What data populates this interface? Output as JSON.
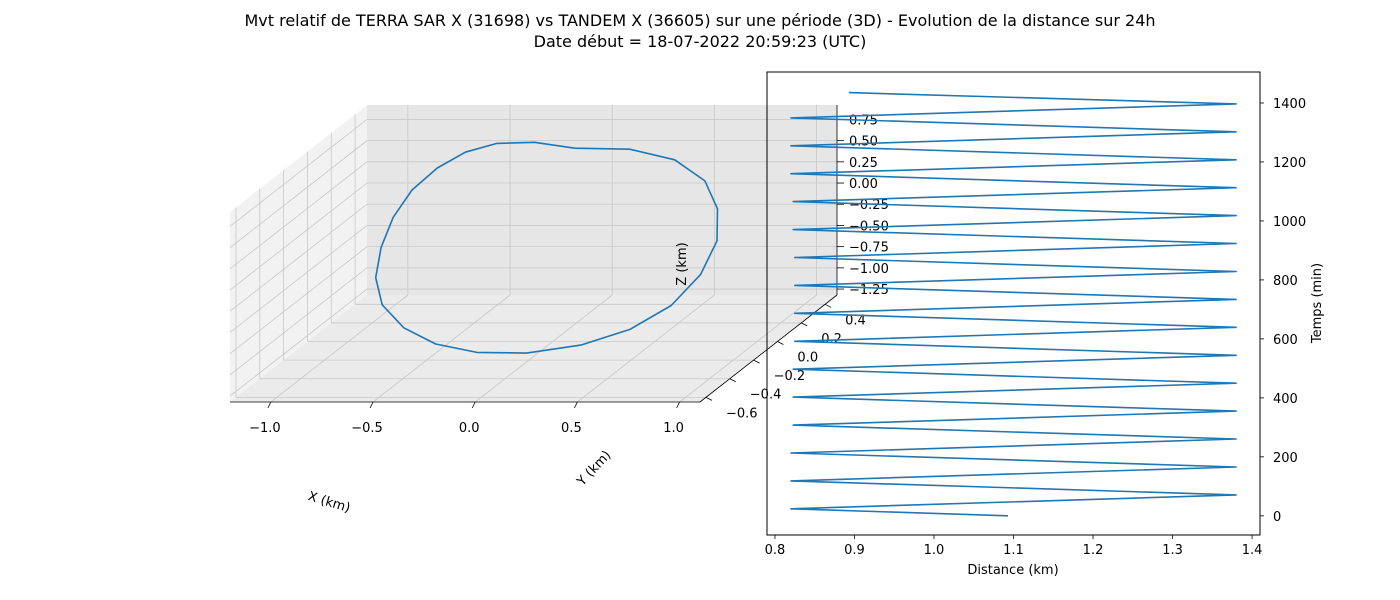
{
  "figure": {
    "title_line1": "Mvt relatif de TERRA SAR X (31698) vs TANDEM X (36605) sur une période (3D) - Evolution de la distance sur 24h",
    "title_line2": "Date début = 18-07-2022 20:59:23 (UTC)"
  },
  "colors": {
    "series": "#1f77b4",
    "pane_left": "#f2f2f2",
    "pane_right": "#e6e6e6",
    "pane_floor": "#ebebeb",
    "grid": "#c8c8c8"
  },
  "chart_data": [
    {
      "type": "line3d",
      "title": "",
      "xlabel": "X (km)",
      "ylabel": "Y (km)",
      "zlabel": "Z (km)",
      "x_ticks": [
        "−1.0",
        "−0.5",
        "0.0",
        "0.5",
        "1.0"
      ],
      "y_ticks": [
        "−0.6",
        "−0.4",
        "−0.2",
        "0.0",
        "0.2",
        "0.4"
      ],
      "z_ticks": [
        "−1.25",
        "−1.00",
        "−0.75",
        "−0.50",
        "−0.25",
        "0.00",
        "0.25",
        "0.50",
        "0.75"
      ],
      "grid": true,
      "series": [
        {
          "name": "",
          "description_points": "closed relative orbit loop, approximately 21 samples",
          "x": [
            0.05,
            -0.2,
            -0.43,
            -0.62,
            -0.78,
            -0.91,
            -0.99,
            -1.02,
            -1.0,
            -0.91,
            -0.74,
            -0.52,
            -0.26,
            0.03,
            0.33,
            0.59,
            0.79,
            0.91,
            0.95,
            0.9,
            0.78,
            0.58,
            0.33,
            0.05
          ],
          "y": [
            0.1,
            0.19,
            0.27,
            0.33,
            0.37,
            0.38,
            0.36,
            0.31,
            0.23,
            0.13,
            0.02,
            -0.09,
            -0.19,
            -0.27,
            -0.33,
            -0.36,
            -0.36,
            -0.32,
            -0.25,
            -0.16,
            -0.06,
            0.03,
            0.08,
            0.1
          ],
          "z": [
            0.85,
            0.82,
            0.72,
            0.55,
            0.32,
            0.05,
            -0.25,
            -0.55,
            -0.82,
            -1.03,
            -1.18,
            -1.25,
            -1.24,
            -1.16,
            -1.0,
            -0.78,
            -0.5,
            -0.18,
            0.14,
            0.42,
            0.64,
            0.79,
            0.86,
            0.85
          ]
        }
      ]
    },
    {
      "type": "line",
      "title": "",
      "xlabel": "Distance (km)",
      "ylabel": "Temps (min)",
      "x_ticks": [
        "0.8",
        "0.9",
        "1.0",
        "1.1",
        "1.2",
        "1.3",
        "1.4"
      ],
      "y_ticks": [
        "0",
        "200",
        "400",
        "600",
        "800",
        "1000",
        "1200",
        "1400"
      ],
      "xlim": [
        0.79,
        1.41
      ],
      "ylim": [
        -65,
        1505
      ],
      "y_axis_position": "right",
      "grid": false,
      "series": [
        {
          "name": "",
          "note": "distance oscillates between ~0.82 km and ~1.38 km with a period of ~94.7 min",
          "t": [
            0,
            23.7,
            71.0,
            118.4,
            165.7,
            213.1,
            260.4,
            307.8,
            355.1,
            402.5,
            449.8,
            497.2,
            544.5,
            591.9,
            639.2,
            686.6,
            733.9,
            781.3,
            828.6,
            876.0,
            923.3,
            970.7,
            1018.0,
            1065.4,
            1112.7,
            1160.1,
            1207.4,
            1254.8,
            1302.1,
            1349.5,
            1396.8,
            1435
          ],
          "distance": [
            1.093,
            0.82,
            1.38,
            0.82,
            1.38,
            0.82,
            1.38,
            0.823,
            1.38,
            0.823,
            1.38,
            0.823,
            1.38,
            0.825,
            1.38,
            0.825,
            1.38,
            0.825,
            1.38,
            0.825,
            1.38,
            0.823,
            1.38,
            0.823,
            1.38,
            0.82,
            1.38,
            0.82,
            1.38,
            0.82,
            1.38,
            0.893
          ]
        }
      ]
    }
  ]
}
